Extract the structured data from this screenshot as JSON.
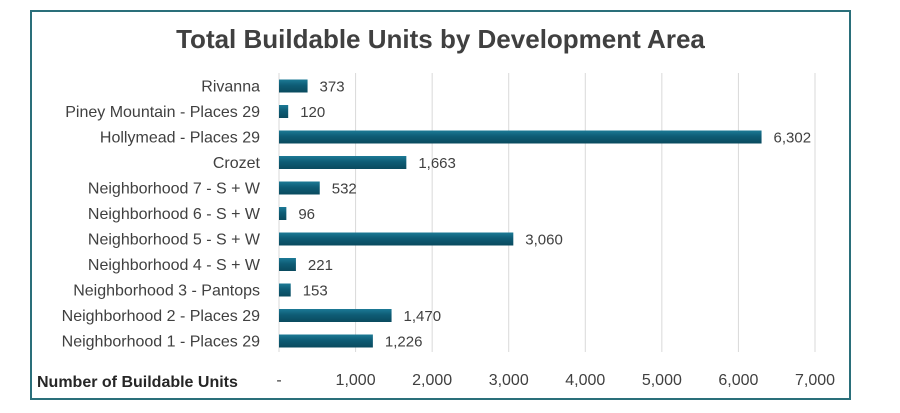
{
  "chart_data": {
    "type": "bar",
    "orientation": "horizontal",
    "title": "Total Buildable Units by Development Area",
    "xlabel": "Number of Buildable Units",
    "ylabel": "",
    "categories": [
      "Rivanna",
      "Piney Mountain - Places 29",
      "Hollymead - Places 29",
      "Crozet",
      "Neighborhood 7 - S + W",
      "Neighborhood 6 - S + W",
      "Neighborhood 5 - S + W",
      "Neighborhood 4 - S + W",
      "Neighborhood 3 - Pantops",
      "Neighborhood 2 - Places 29",
      "Neighborhood 1 - Places 29"
    ],
    "values": [
      373,
      120,
      6302,
      1663,
      532,
      96,
      3060,
      221,
      153,
      1470,
      1226
    ],
    "data_labels": [
      "373",
      "120",
      "6,302",
      "1,663",
      "532",
      "96",
      "3,060",
      "221",
      "153",
      "1,470",
      "1,226"
    ],
    "xlim": [
      0,
      7000
    ],
    "ticks": [
      0,
      1000,
      2000,
      3000,
      4000,
      5000,
      6000,
      7000
    ],
    "tick_labels": [
      "-",
      "1,000",
      "2,000",
      "3,000",
      "4,000",
      "5,000",
      "6,000",
      "7,000"
    ],
    "grid": "vertical",
    "legend": "none",
    "colors": {
      "bar": "#0e5c75",
      "bar_highlight": "#1c7a96",
      "grid": "#d9d9d9",
      "frame": "#2a6f7a",
      "text": "#404040"
    }
  }
}
